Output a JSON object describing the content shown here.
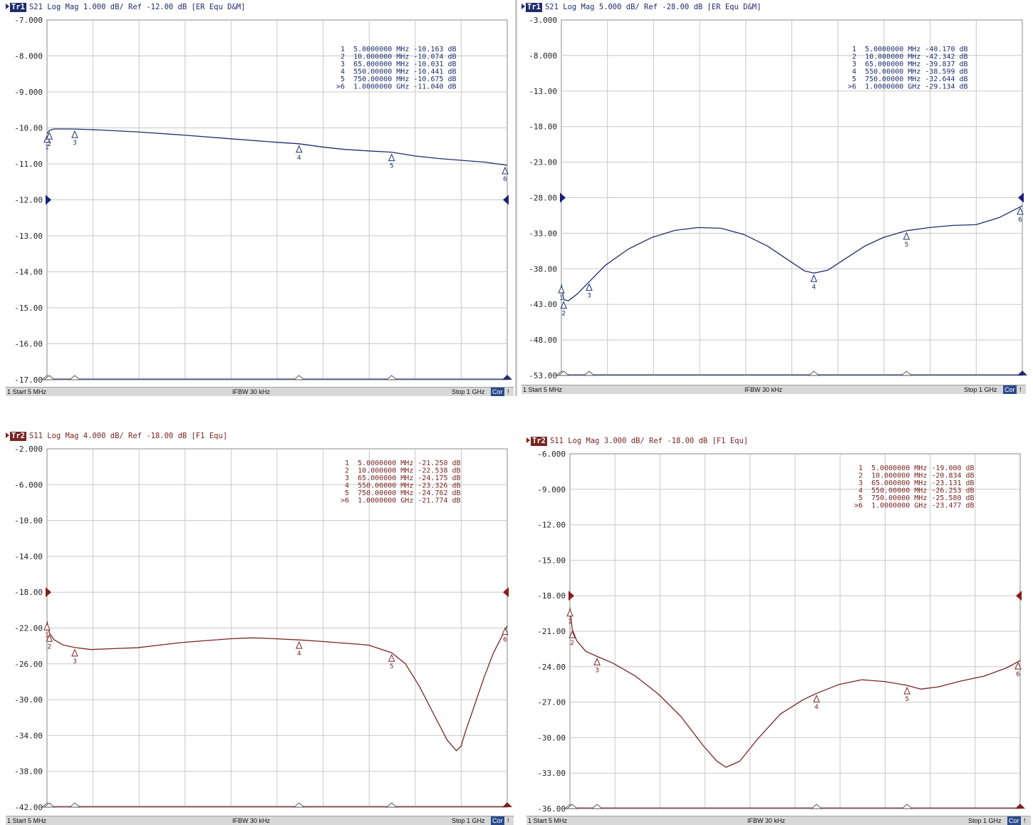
{
  "panels": [
    {
      "trace": "Tr1",
      "header": "S21  Log Mag 1.000 dB/  Ref  -12.00 dB  [ER Equ D&M]",
      "status": {
        "start": "1  Start 5 MHz",
        "ifbw": "IFBW 30 kHz",
        "stop": "Stop 1 GHz",
        "cor": "Cor",
        "end": "!"
      },
      "color": "#1f2d6e",
      "ref_arrow_color": "#1a1f7a"
    },
    {
      "trace": "Tr1",
      "header": "S21  Log Mag 5.000 dB/  Ref  -28.00 dB  [ER Equ D&M]",
      "status": {
        "start": "1  Start 5 MHz",
        "ifbw": "IFBW 30 kHz",
        "stop": "Stop 1 GHz",
        "cor": "Cor",
        "end": "!"
      },
      "color": "#1f2d6e",
      "ref_arrow_color": "#1a1f7a"
    },
    {
      "trace": "Tr2",
      "header": "S11  Log Mag 4.000 dB/  Ref  -18.00 dB  [F1 Equ]",
      "status": {
        "start": "1  Start 5 MHz",
        "ifbw": "IFBW 30 kHz",
        "stop": "Stop 1 GHz",
        "cor": "Cor",
        "end": "!"
      },
      "color": "#7a2424",
      "ref_arrow_color": "#8b1a1a"
    },
    {
      "trace": "Tr2",
      "header": "S11  Log Mag 3.000 dB/  Ref  -18.00 dB  [F1 Equ]",
      "status": {
        "start": "1  Start 5 MHz",
        "ifbw": "IFBW 30 kHz",
        "stop": "Stop 1 GHz",
        "cor": "Cor",
        "end": "!"
      },
      "color": "#7a2424",
      "ref_arrow_color": "#8b1a1a"
    }
  ],
  "chart_data": [
    {
      "type": "line",
      "xlim": [
        5,
        1000
      ],
      "ylim": [
        -17,
        -7
      ],
      "yticks": [
        "-7.000",
        "-8.000",
        "-9.000",
        "-10.00",
        "-11.00",
        "-12.00",
        "-13.00",
        "-14.00",
        "-15.00",
        "-16.00",
        "-17.00"
      ],
      "ref_level": -12,
      "grid": true,
      "series": [
        {
          "x": [
            5,
            10,
            20,
            35,
            65,
            120,
            200,
            300,
            400,
            500,
            550,
            600,
            650,
            700,
            750,
            800,
            850,
            900,
            950,
            1000
          ],
          "y": [
            -10.163,
            -10.074,
            -10.03,
            -10.03,
            -10.031,
            -10.06,
            -10.11,
            -10.2,
            -10.3,
            -10.4,
            -10.441,
            -10.53,
            -10.6,
            -10.64,
            -10.675,
            -10.78,
            -10.85,
            -10.9,
            -10.95,
            -11.04
          ]
        }
      ],
      "markers": [
        {
          "n": "1",
          "freq": "5.0000000 MHz",
          "val": "-10.163 dB",
          "x": 5,
          "y": -10.163
        },
        {
          "n": "2",
          "freq": "10.000000 MHz",
          "val": "-10.074 dB",
          "x": 10,
          "y": -10.074
        },
        {
          "n": "3",
          "freq": "65.000000 MHz",
          "val": "-10.031 dB",
          "x": 65,
          "y": -10.031
        },
        {
          "n": "4",
          "freq": "550.00000 MHz",
          "val": "-10.441 dB",
          "x": 550,
          "y": -10.441
        },
        {
          "n": "5",
          "freq": "750.00000 MHz",
          "val": "-10.675 dB",
          "x": 750,
          "y": -10.675
        },
        {
          "n": ">6",
          "freq": "1.0000000 GHz",
          "val": "-11.040 dB",
          "x": 1000,
          "y": -11.04
        }
      ]
    },
    {
      "type": "line",
      "xlim": [
        5,
        1000
      ],
      "ylim": [
        -53,
        -3
      ],
      "yticks": [
        "-3.000",
        "-8.000",
        "-13.00",
        "-18.00",
        "-23.00",
        "-28.00",
        "-33.00",
        "-38.00",
        "-43.00",
        "-48.00",
        "-53.00"
      ],
      "ref_level": -28,
      "grid": true,
      "series": [
        {
          "x": [
            5,
            10,
            20,
            40,
            65,
            100,
            150,
            200,
            250,
            300,
            350,
            400,
            450,
            500,
            530,
            550,
            580,
            620,
            660,
            700,
            750,
            800,
            850,
            900,
            950,
            1000
          ],
          "y": [
            -40.17,
            -42.342,
            -42.5,
            -41.5,
            -39.837,
            -37.5,
            -35.2,
            -33.6,
            -32.6,
            -32.2,
            -32.3,
            -33.2,
            -34.8,
            -37.0,
            -38.3,
            -38.599,
            -38.2,
            -36.5,
            -34.8,
            -33.6,
            -32.644,
            -32.2,
            -31.9,
            -31.8,
            -30.8,
            -29.134
          ]
        }
      ],
      "markers": [
        {
          "n": "1",
          "freq": "5.0000000 MHz",
          "val": "-40.170 dB",
          "x": 5,
          "y": -40.17
        },
        {
          "n": "2",
          "freq": "10.000000 MHz",
          "val": "-42.342 dB",
          "x": 10,
          "y": -42.342
        },
        {
          "n": "3",
          "freq": "65.000000 MHz",
          "val": "-39.837 dB",
          "x": 65,
          "y": -39.837
        },
        {
          "n": "4",
          "freq": "550.00000 MHz",
          "val": "-38.599 dB",
          "x": 550,
          "y": -38.599
        },
        {
          "n": "5",
          "freq": "750.00000 MHz",
          "val": "-32.644 dB",
          "x": 750,
          "y": -32.644
        },
        {
          "n": ">6",
          "freq": "1.0000000 GHz",
          "val": "-29.134 dB",
          "x": 1000,
          "y": -29.134
        }
      ]
    },
    {
      "type": "line",
      "xlim": [
        5,
        1000
      ],
      "ylim": [
        -42,
        -2
      ],
      "yticks": [
        "-2.000",
        "-6.000",
        "-10.00",
        "-14.00",
        "-18.00",
        "-22.00",
        "-26.00",
        "-30.00",
        "-34.00",
        "-38.00",
        "-42.00"
      ],
      "ref_level": -18,
      "grid": true,
      "series": [
        {
          "x": [
            5,
            10,
            20,
            40,
            65,
            100,
            150,
            200,
            250,
            300,
            350,
            400,
            450,
            500,
            550,
            600,
            650,
            700,
            750,
            780,
            810,
            840,
            870,
            890,
            900,
            910,
            930,
            950,
            970,
            1000
          ],
          "y": [
            -21.25,
            -22.538,
            -23.3,
            -23.9,
            -24.175,
            -24.4,
            -24.3,
            -24.2,
            -23.9,
            -23.6,
            -23.4,
            -23.2,
            -23.1,
            -23.2,
            -23.326,
            -23.5,
            -23.7,
            -23.9,
            -24.762,
            -26.0,
            -28.5,
            -31.5,
            -34.5,
            -35.7,
            -35.2,
            -33.5,
            -30.5,
            -27.5,
            -24.8,
            -21.774
          ]
        }
      ],
      "markers": [
        {
          "n": "1",
          "freq": "5.0000000 MHz",
          "val": "-21.250 dB",
          "x": 5,
          "y": -21.25
        },
        {
          "n": "2",
          "freq": "10.000000 MHz",
          "val": "-22.538 dB",
          "x": 10,
          "y": -22.538
        },
        {
          "n": "3",
          "freq": "65.000000 MHz",
          "val": "-24.175 dB",
          "x": 65,
          "y": -24.175
        },
        {
          "n": "4",
          "freq": "550.00000 MHz",
          "val": "-23.326 dB",
          "x": 550,
          "y": -23.326
        },
        {
          "n": "5",
          "freq": "750.00000 MHz",
          "val": "-24.762 dB",
          "x": 750,
          "y": -24.762
        },
        {
          "n": ">6",
          "freq": "1.0000000 GHz",
          "val": "-21.774 dB",
          "x": 1000,
          "y": -21.774
        }
      ]
    },
    {
      "type": "line",
      "xlim": [
        5,
        1000
      ],
      "ylim": [
        -36,
        -6
      ],
      "yticks": [
        "-6.000",
        "-9.000",
        "-12.00",
        "-15.00",
        "-18.00",
        "-21.00",
        "-24.00",
        "-27.00",
        "-30.00",
        "-33.00",
        "-36.00"
      ],
      "ref_level": -18,
      "grid": true,
      "series": [
        {
          "x": [
            5,
            10,
            20,
            40,
            65,
            100,
            150,
            200,
            250,
            300,
            330,
            350,
            380,
            420,
            470,
            520,
            550,
            600,
            650,
            700,
            750,
            780,
            820,
            870,
            920,
            970,
            1000
          ],
          "y": [
            -19.0,
            -20.834,
            -21.8,
            -22.7,
            -23.131,
            -23.7,
            -24.8,
            -26.3,
            -28.2,
            -30.7,
            -32.0,
            -32.5,
            -32.0,
            -30.1,
            -28.0,
            -26.8,
            -26.253,
            -25.5,
            -25.1,
            -25.25,
            -25.58,
            -25.9,
            -25.7,
            -25.2,
            -24.8,
            -24.1,
            -23.477
          ]
        }
      ],
      "markers": [
        {
          "n": "1",
          "freq": "5.0000000 MHz",
          "val": "-19.000 dB",
          "x": 5,
          "y": -19.0
        },
        {
          "n": "2",
          "freq": "10.000000 MHz",
          "val": "-20.834 dB",
          "x": 10,
          "y": -20.834
        },
        {
          "n": "3",
          "freq": "65.000000 MHz",
          "val": "-23.131 dB",
          "x": 65,
          "y": -23.131
        },
        {
          "n": "4",
          "freq": "550.00000 MHz",
          "val": "-26.253 dB",
          "x": 550,
          "y": -26.253
        },
        {
          "n": "5",
          "freq": "750.00000 MHz",
          "val": "-25.580 dB",
          "x": 750,
          "y": -25.58
        },
        {
          "n": ">6",
          "freq": "1.0000000 GHz",
          "val": "-23.477 dB",
          "x": 1000,
          "y": -23.477
        }
      ]
    }
  ]
}
